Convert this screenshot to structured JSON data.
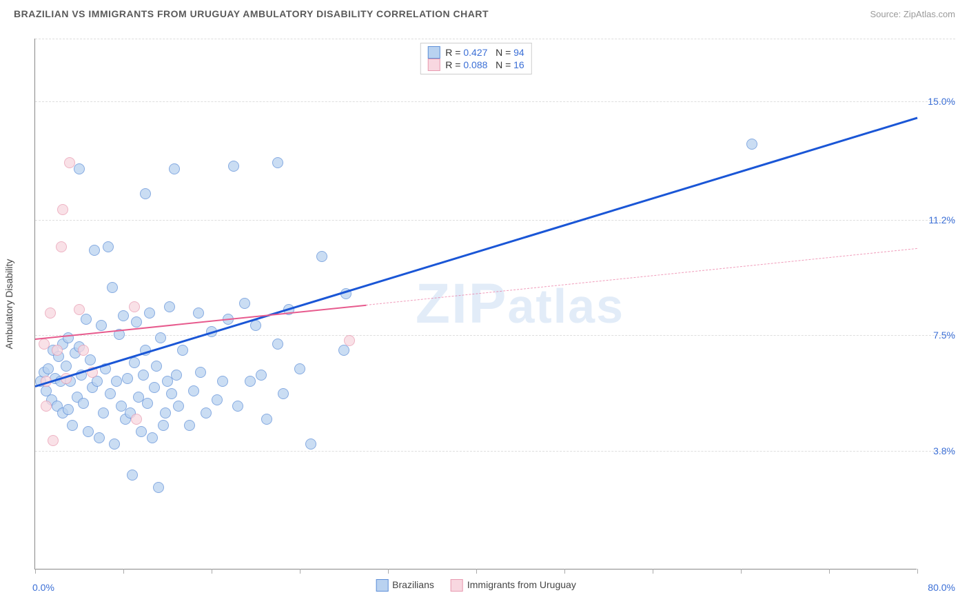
{
  "header": {
    "title": "BRAZILIAN VS IMMIGRANTS FROM URUGUAY AMBULATORY DISABILITY CORRELATION CHART",
    "source": "Source: ZipAtlas.com"
  },
  "watermark": {
    "prefix": "ZIP",
    "suffix": "atlas"
  },
  "chart": {
    "type": "scatter",
    "y_axis_title": "Ambulatory Disability",
    "xlim": [
      0,
      80
    ],
    "ylim": [
      0,
      17
    ],
    "x_limit_labels": {
      "min": "0.0%",
      "max": "80.0%"
    },
    "x_ticks": [
      0,
      8,
      16,
      24,
      32,
      40,
      48,
      56,
      64,
      72,
      80
    ],
    "y_ticks": [
      3.8,
      7.5,
      11.2,
      15.0
    ],
    "y_tick_labels": [
      "3.8%",
      "7.5%",
      "11.2%",
      "15.0%"
    ],
    "grid_color": "#dddddd",
    "background_color": "#ffffff",
    "axis_color": "#888888",
    "tick_label_color": "#3b6fd6",
    "marker_radius": 8,
    "series": [
      {
        "name": "Brazilians",
        "color_stroke": "#5e8fd8",
        "color_fill": "#b9d2f0",
        "r_value": "0.427",
        "n_value": "94",
        "trend": {
          "x1": 0,
          "y1": 5.9,
          "x2": 80,
          "y2": 14.5,
          "width": 3,
          "style": "solid",
          "color": "#1a56d6",
          "draw_to_x": 80
        },
        "points": [
          [
            0.5,
            6.0
          ],
          [
            0.8,
            6.3
          ],
          [
            1.0,
            5.7
          ],
          [
            1.2,
            6.4
          ],
          [
            1.5,
            5.4
          ],
          [
            1.6,
            7.0
          ],
          [
            1.8,
            6.1
          ],
          [
            2.0,
            5.2
          ],
          [
            2.1,
            6.8
          ],
          [
            2.3,
            6.0
          ],
          [
            2.5,
            5.0
          ],
          [
            2.5,
            7.2
          ],
          [
            2.8,
            6.5
          ],
          [
            3.0,
            5.1
          ],
          [
            3.0,
            7.4
          ],
          [
            3.2,
            6.0
          ],
          [
            3.4,
            4.6
          ],
          [
            3.6,
            6.9
          ],
          [
            3.8,
            5.5
          ],
          [
            4.0,
            12.8
          ],
          [
            4.0,
            7.1
          ],
          [
            4.2,
            6.2
          ],
          [
            4.4,
            5.3
          ],
          [
            4.6,
            8.0
          ],
          [
            4.8,
            4.4
          ],
          [
            5.0,
            6.7
          ],
          [
            5.2,
            5.8
          ],
          [
            5.4,
            10.2
          ],
          [
            5.6,
            6.0
          ],
          [
            5.8,
            4.2
          ],
          [
            6.0,
            7.8
          ],
          [
            6.2,
            5.0
          ],
          [
            6.4,
            6.4
          ],
          [
            6.6,
            10.3
          ],
          [
            6.8,
            5.6
          ],
          [
            7.0,
            9.0
          ],
          [
            7.2,
            4.0
          ],
          [
            7.4,
            6.0
          ],
          [
            7.6,
            7.5
          ],
          [
            7.8,
            5.2
          ],
          [
            8.0,
            8.1
          ],
          [
            8.2,
            4.8
          ],
          [
            8.4,
            6.1
          ],
          [
            8.6,
            5.0
          ],
          [
            8.8,
            3.0
          ],
          [
            9.0,
            6.6
          ],
          [
            9.2,
            7.9
          ],
          [
            9.4,
            5.5
          ],
          [
            9.6,
            4.4
          ],
          [
            9.8,
            6.2
          ],
          [
            10.0,
            7.0
          ],
          [
            10.0,
            12.0
          ],
          [
            10.2,
            5.3
          ],
          [
            10.4,
            8.2
          ],
          [
            10.6,
            4.2
          ],
          [
            10.8,
            5.8
          ],
          [
            11.0,
            6.5
          ],
          [
            11.2,
            2.6
          ],
          [
            11.4,
            7.4
          ],
          [
            11.6,
            4.6
          ],
          [
            11.8,
            5.0
          ],
          [
            12.0,
            6.0
          ],
          [
            12.2,
            8.4
          ],
          [
            12.4,
            5.6
          ],
          [
            12.6,
            12.8
          ],
          [
            12.8,
            6.2
          ],
          [
            13.0,
            5.2
          ],
          [
            13.4,
            7.0
          ],
          [
            14.0,
            4.6
          ],
          [
            14.4,
            5.7
          ],
          [
            14.8,
            8.2
          ],
          [
            15.0,
            6.3
          ],
          [
            15.5,
            5.0
          ],
          [
            16.0,
            7.6
          ],
          [
            16.5,
            5.4
          ],
          [
            17.0,
            6.0
          ],
          [
            17.5,
            8.0
          ],
          [
            18.0,
            12.9
          ],
          [
            18.4,
            5.2
          ],
          [
            19.0,
            8.5
          ],
          [
            19.5,
            6.0
          ],
          [
            20.0,
            7.8
          ],
          [
            20.5,
            6.2
          ],
          [
            21.0,
            4.8
          ],
          [
            22.0,
            7.2
          ],
          [
            22.0,
            13.0
          ],
          [
            22.5,
            5.6
          ],
          [
            23.0,
            8.3
          ],
          [
            24.0,
            6.4
          ],
          [
            25.0,
            4.0
          ],
          [
            26.0,
            10.0
          ],
          [
            28.0,
            7.0
          ],
          [
            28.2,
            8.8
          ],
          [
            65.0,
            13.6
          ]
        ]
      },
      {
        "name": "Immigrants from Uruguay",
        "color_stroke": "#e89ab0",
        "color_fill": "#f8d7e0",
        "r_value": "0.088",
        "n_value": "16",
        "trend": {
          "x1": 0,
          "y1": 7.4,
          "x2": 80,
          "y2": 10.3,
          "width": 2,
          "style": "solid",
          "color": "#e75a8d",
          "draw_to_x": 30,
          "dash_after": true
        },
        "points": [
          [
            0.8,
            7.2
          ],
          [
            1.0,
            6.0
          ],
          [
            1.0,
            5.2
          ],
          [
            1.4,
            8.2
          ],
          [
            1.6,
            4.1
          ],
          [
            2.0,
            7.0
          ],
          [
            2.4,
            10.3
          ],
          [
            2.8,
            6.1
          ],
          [
            2.5,
            11.5
          ],
          [
            3.1,
            13.0
          ],
          [
            4.0,
            8.3
          ],
          [
            4.4,
            7.0
          ],
          [
            5.2,
            6.3
          ],
          [
            9.0,
            8.4
          ],
          [
            9.2,
            4.8
          ],
          [
            28.5,
            7.3
          ]
        ]
      }
    ],
    "legend_top": {
      "r_label": "R = ",
      "n_label": "N = "
    },
    "legend_bottom_labels": [
      "Brazilians",
      "Immigrants from Uruguay"
    ]
  }
}
